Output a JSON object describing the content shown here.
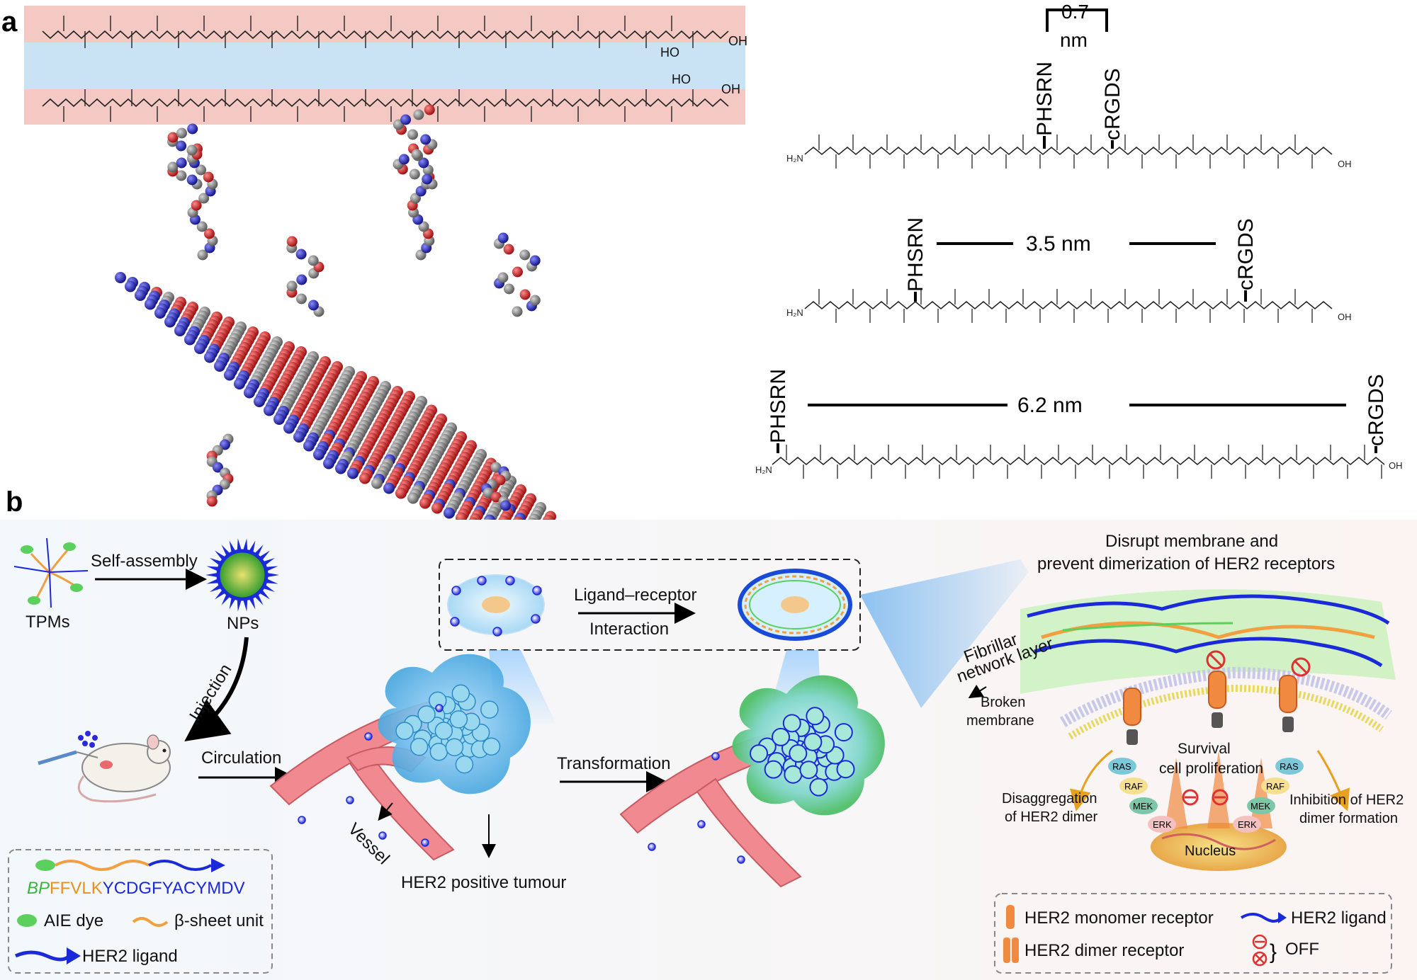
{
  "panel_a": {
    "label": "a",
    "spacing_top": "0.7",
    "spacing_top_unit": "nm",
    "spacing_mid": "3.5 nm",
    "spacing_bottom": "6.2 nm",
    "ligand_1": "PHSRN",
    "ligand_2": "cRGDS",
    "atoms": {
      "oh": "OH",
      "ho": "HO",
      "h2n": "H₂N",
      "nh": "H",
      "o": "O"
    }
  },
  "panel_b": {
    "label": "b",
    "tpms": "TPMs",
    "self_assembly": "Self-assembly",
    "nps": "NPs",
    "injection": "Injection",
    "circulation": "Circulation",
    "vessel": "Vessel",
    "tumour": "HER2 positive tumour",
    "transformation": "Transformation",
    "ligand_receptor": "Ligand–receptor",
    "interaction": "Interaction",
    "disrupt_1": "Disrupt membrane and",
    "disrupt_2": "prevent dimerization of HER2 receptors",
    "fibrillar_1": "Fibrillar",
    "fibrillar_2": "network layer",
    "broken_1": "Broken",
    "broken_2": "membrane",
    "survival": "Survival",
    "proliferation": "cell proliferation",
    "disagg_1": "Disaggregation",
    "disagg_2": "of HER2 dimer",
    "inhibit_1": "Inhibition of HER2",
    "inhibit_2": "dimer formation",
    "nucleus": "Nucleus",
    "kinases": [
      "RAS",
      "RAF",
      "MEK",
      "ERK"
    ],
    "sequence_green": "BP",
    "sequence_orange": "FFVLK",
    "sequence_blue": "YCDGFYACYMDV",
    "legend_left": {
      "aie": "AIE dye",
      "beta": "β-sheet unit",
      "ligand": "HER2 ligand"
    },
    "legend_right": {
      "monomer": "HER2 monomer receptor",
      "dimer": "HER2 dimer receptor",
      "ligand": "HER2 ligand",
      "off": "OFF"
    }
  },
  "colors": {
    "pink_band": "#f4c9c3",
    "blue_band": "#c9e3f4",
    "oxygen": "#cc2222",
    "carbon": "#808080",
    "nitrogen": "#2a2ad0",
    "vessel": "#e8727a",
    "tumour_blue": "#5ab4e8",
    "ligand_blue": "#1a2ad8",
    "aie_green": "#5cd05c",
    "beta_orange": "#f0a040"
  }
}
